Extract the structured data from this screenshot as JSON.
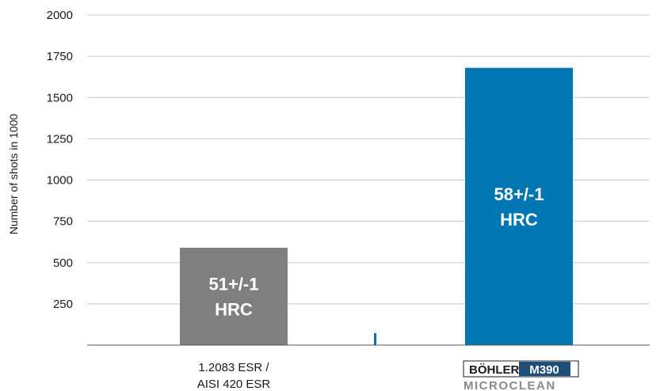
{
  "chart_data": {
    "type": "bar",
    "ylabel": "Number of shots in 1000",
    "ylim": [
      0,
      2000
    ],
    "yticks": [
      250,
      500,
      750,
      1000,
      1250,
      1500,
      1750,
      2000
    ],
    "grid": true,
    "categories": [
      "1.2083 ESR / AISI 420 ESR",
      "BÖHLER M390 MICROCLEAN"
    ],
    "category_lines": [
      [
        "1.2083 ESR /",
        "AISI 420 ESR"
      ],
      []
    ],
    "values": [
      590,
      1680
    ],
    "bar_colors": [
      "#7f7f7f",
      "#0077b3"
    ],
    "bar_labels": [
      [
        "51+/-1",
        "HRC"
      ],
      [
        "58+/-1",
        "HRC"
      ]
    ]
  },
  "logo": {
    "brand": "BÖHLER",
    "grade": "M390",
    "line2": "MICROCLEAN",
    "brand_color": "#1a1a1a",
    "grade_bg": "#1f4e79",
    "line2_color": "#8a8a8a"
  },
  "colors": {
    "grid": "#c8c8c8",
    "axis": "#555555",
    "marker": "#0077b3"
  }
}
